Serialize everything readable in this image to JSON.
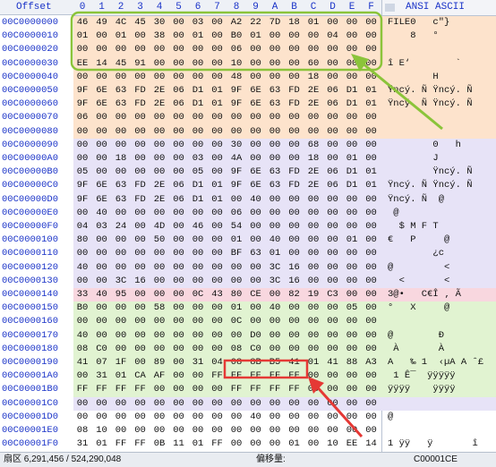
{
  "header": {
    "offset_label": "Offset",
    "hex_labels": [
      "0",
      "1",
      "2",
      "3",
      "4",
      "5",
      "6",
      "7",
      "8",
      "9",
      "A",
      "B",
      "C",
      "D",
      "E",
      "F"
    ],
    "ascii_label": "ANSI ASCII"
  },
  "rows": [
    {
      "offset": "00C0000000",
      "bytes": [
        "46",
        "49",
        "4C",
        "45",
        "30",
        "00",
        "03",
        "00",
        "A2",
        "22",
        "7D",
        "18",
        "01",
        "00",
        "00",
        "00"
      ],
      "ascii": "FILE0   c\"}"
    },
    {
      "offset": "00C0000010",
      "bytes": [
        "01",
        "00",
        "01",
        "00",
        "38",
        "00",
        "01",
        "00",
        "B0",
        "01",
        "00",
        "00",
        "00",
        "04",
        "00",
        "00"
      ],
      "ascii": "    8   °"
    },
    {
      "offset": "00C0000020",
      "bytes": [
        "00",
        "00",
        "00",
        "00",
        "00",
        "00",
        "00",
        "00",
        "06",
        "00",
        "00",
        "00",
        "00",
        "00",
        "00",
        "00"
      ],
      "ascii": ""
    },
    {
      "offset": "00C0000030",
      "bytes": [
        "EE",
        "14",
        "45",
        "91",
        "00",
        "00",
        "00",
        "00",
        "10",
        "00",
        "00",
        "00",
        "60",
        "00",
        "00",
        "00"
      ],
      "ascii": "î E‘        `"
    },
    {
      "offset": "00C0000040",
      "bytes": [
        "00",
        "00",
        "00",
        "00",
        "00",
        "00",
        "00",
        "00",
        "48",
        "00",
        "00",
        "00",
        "18",
        "00",
        "00",
        "00"
      ],
      "ascii": "        H"
    },
    {
      "offset": "00C0000050",
      "bytes": [
        "9F",
        "6E",
        "63",
        "FD",
        "2E",
        "06",
        "D1",
        "01",
        "9F",
        "6E",
        "63",
        "FD",
        "2E",
        "06",
        "D1",
        "01"
      ],
      "ascii": "Ÿncý. Ñ Ÿncý. Ñ"
    },
    {
      "offset": "00C0000060",
      "bytes": [
        "9F",
        "6E",
        "63",
        "FD",
        "2E",
        "06",
        "D1",
        "01",
        "9F",
        "6E",
        "63",
        "FD",
        "2E",
        "06",
        "D1",
        "01"
      ],
      "ascii": "Ÿncý. Ñ Ÿncý. Ñ"
    },
    {
      "offset": "00C0000070",
      "bytes": [
        "06",
        "00",
        "00",
        "00",
        "00",
        "00",
        "00",
        "00",
        "00",
        "00",
        "00",
        "00",
        "00",
        "00",
        "00",
        "00"
      ],
      "ascii": ""
    },
    {
      "offset": "00C0000080",
      "bytes": [
        "00",
        "00",
        "00",
        "00",
        "00",
        "00",
        "00",
        "00",
        "00",
        "00",
        "00",
        "00",
        "00",
        "00",
        "00",
        "00"
      ],
      "ascii": ""
    },
    {
      "offset": "00C0000090",
      "bytes": [
        "00",
        "00",
        "00",
        "00",
        "00",
        "00",
        "00",
        "00",
        "30",
        "00",
        "00",
        "00",
        "68",
        "00",
        "00",
        "00"
      ],
      "ascii": "        0   h"
    },
    {
      "offset": "00C00000A0",
      "bytes": [
        "00",
        "00",
        "18",
        "00",
        "00",
        "00",
        "03",
        "00",
        "4A",
        "00",
        "00",
        "00",
        "18",
        "00",
        "01",
        "00"
      ],
      "ascii": "        J"
    },
    {
      "offset": "00C00000B0",
      "bytes": [
        "05",
        "00",
        "00",
        "00",
        "00",
        "00",
        "05",
        "00",
        "9F",
        "6E",
        "63",
        "FD",
        "2E",
        "06",
        "D1",
        "01"
      ],
      "ascii": "        Ÿncý. Ñ"
    },
    {
      "offset": "00C00000C0",
      "bytes": [
        "9F",
        "6E",
        "63",
        "FD",
        "2E",
        "06",
        "D1",
        "01",
        "9F",
        "6E",
        "63",
        "FD",
        "2E",
        "06",
        "D1",
        "01"
      ],
      "ascii": "Ÿncý. Ñ Ÿncý. Ñ"
    },
    {
      "offset": "00C00000D0",
      "bytes": [
        "9F",
        "6E",
        "63",
        "FD",
        "2E",
        "06",
        "D1",
        "01",
        "00",
        "40",
        "00",
        "00",
        "00",
        "00",
        "00",
        "00"
      ],
      "ascii": "Ÿncý. Ñ  @"
    },
    {
      "offset": "00C00000E0",
      "bytes": [
        "00",
        "40",
        "00",
        "00",
        "00",
        "00",
        "00",
        "00",
        "06",
        "00",
        "00",
        "00",
        "00",
        "00",
        "00",
        "00"
      ],
      "ascii": " @"
    },
    {
      "offset": "00C00000F0",
      "bytes": [
        "04",
        "03",
        "24",
        "00",
        "4D",
        "00",
        "46",
        "00",
        "54",
        "00",
        "00",
        "00",
        "00",
        "00",
        "00",
        "00"
      ],
      "ascii": "  $ M F T"
    },
    {
      "offset": "00C0000100",
      "bytes": [
        "80",
        "00",
        "00",
        "00",
        "50",
        "00",
        "00",
        "00",
        "01",
        "00",
        "40",
        "00",
        "00",
        "00",
        "01",
        "00"
      ],
      "ascii": "€   P     @"
    },
    {
      "offset": "00C0000110",
      "bytes": [
        "00",
        "00",
        "00",
        "00",
        "00",
        "00",
        "00",
        "00",
        "BF",
        "63",
        "01",
        "00",
        "00",
        "00",
        "00",
        "00"
      ],
      "ascii": "        ¿c"
    },
    {
      "offset": "00C0000120",
      "bytes": [
        "40",
        "00",
        "00",
        "00",
        "00",
        "00",
        "00",
        "00",
        "00",
        "00",
        "3C",
        "16",
        "00",
        "00",
        "00",
        "00"
      ],
      "ascii": "@         <"
    },
    {
      "offset": "00C0000130",
      "bytes": [
        "00",
        "00",
        "3C",
        "16",
        "00",
        "00",
        "00",
        "00",
        "00",
        "00",
        "3C",
        "16",
        "00",
        "00",
        "00",
        "00"
      ],
      "ascii": "  <       <"
    },
    {
      "offset": "00C0000140",
      "bytes": [
        "33",
        "40",
        "95",
        "00",
        "00",
        "00",
        "0C",
        "43",
        "80",
        "CE",
        "00",
        "82",
        "19",
        "C3",
        "00",
        "00"
      ],
      "ascii": "3@•   C€Î ‚ Ã"
    },
    {
      "offset": "00C0000150",
      "bytes": [
        "B0",
        "00",
        "00",
        "00",
        "58",
        "00",
        "00",
        "00",
        "01",
        "00",
        "40",
        "00",
        "00",
        "00",
        "05",
        "00"
      ],
      "ascii": "°   X     @"
    },
    {
      "offset": "00C0000160",
      "bytes": [
        "00",
        "00",
        "00",
        "00",
        "00",
        "00",
        "00",
        "00",
        "0C",
        "00",
        "00",
        "00",
        "00",
        "00",
        "00",
        "00"
      ],
      "ascii": ""
    },
    {
      "offset": "00C0000170",
      "bytes": [
        "40",
        "00",
        "00",
        "00",
        "00",
        "00",
        "00",
        "00",
        "00",
        "D0",
        "00",
        "00",
        "00",
        "00",
        "00",
        "00"
      ],
      "ascii": "@        Ð"
    },
    {
      "offset": "00C0000180",
      "bytes": [
        "08",
        "C0",
        "00",
        "00",
        "00",
        "00",
        "00",
        "00",
        "08",
        "C0",
        "00",
        "00",
        "00",
        "00",
        "00",
        "00"
      ],
      "ascii": " À       À"
    },
    {
      "offset": "00C0000190",
      "bytes": [
        "41",
        "07",
        "1F",
        "00",
        "89",
        "00",
        "31",
        "04",
        "08",
        "8B",
        "B5",
        "41",
        "01",
        "41",
        "88",
        "A3"
      ],
      "ascii": "A   ‰ 1  ‹µA A ˆ£"
    },
    {
      "offset": "00C00001A0",
      "bytes": [
        "00",
        "31",
        "01",
        "CA",
        "AF",
        "00",
        "00",
        "FF",
        "FF",
        "FF",
        "FF",
        "FF",
        "00",
        "00",
        "00",
        "00"
      ],
      "ascii": " 1 Ê¯  ÿÿÿÿÿ"
    },
    {
      "offset": "00C00001B0",
      "bytes": [
        "FF",
        "FF",
        "FF",
        "FF",
        "00",
        "00",
        "00",
        "00",
        "FF",
        "FF",
        "FF",
        "FF",
        "00",
        "00",
        "00",
        "00"
      ],
      "ascii": "ÿÿÿÿ    ÿÿÿÿ"
    },
    {
      "offset": "00C00001C0",
      "bytes": [
        "00",
        "00",
        "00",
        "00",
        "00",
        "00",
        "00",
        "00",
        "00",
        "00",
        "00",
        "00",
        "00",
        "00",
        "00",
        "00"
      ],
      "ascii": ""
    },
    {
      "offset": "00C00001D0",
      "bytes": [
        "00",
        "00",
        "00",
        "00",
        "00",
        "00",
        "00",
        "00",
        "00",
        "40",
        "00",
        "00",
        "00",
        "00",
        "00",
        "00"
      ],
      "ascii": "@"
    },
    {
      "offset": "00C00001E0",
      "bytes": [
        "08",
        "10",
        "00",
        "00",
        "00",
        "00",
        "00",
        "00",
        "00",
        "00",
        "00",
        "00",
        "00",
        "00",
        "00",
        "00"
      ],
      "ascii": ""
    },
    {
      "offset": "00C00001F0",
      "bytes": [
        "31",
        "01",
        "FF",
        "FF",
        "0B",
        "11",
        "01",
        "FF",
        "00",
        "00",
        "00",
        "01",
        "00",
        "10",
        "EE",
        "14"
      ],
      "ascii": "1 ÿÿ   ÿ       î"
    }
  ],
  "status": {
    "sector_label": "扇区 6,291,456 / 524,290,048",
    "offset_label": "偏移量:",
    "offset_value": "C00001CE"
  },
  "colors": {
    "offset_text": "#1a33c8",
    "band_peach": "#fde3cc",
    "band_green": "#e1f3d1",
    "band_lavender": "#e7e3f7",
    "band_pink": "#f8d7df",
    "annotation_green": "#8bc43a",
    "annotation_red": "#e53935"
  }
}
